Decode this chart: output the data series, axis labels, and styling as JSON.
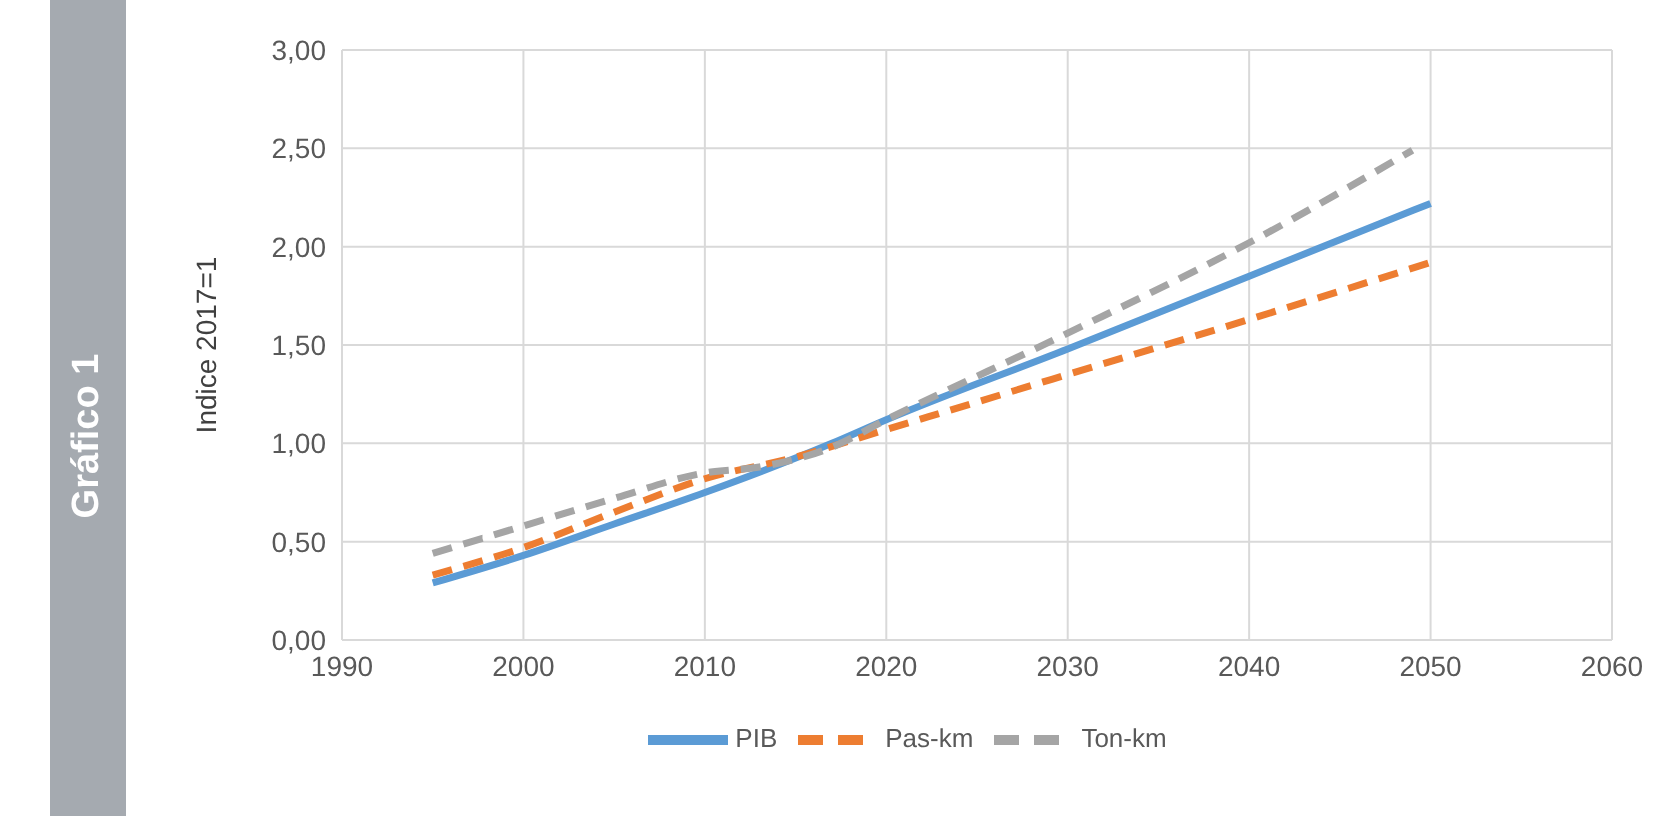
{
  "chart_data": {
    "type": "line",
    "title": "Gráfico 1",
    "ylabel": "Indice 2017=1",
    "xlim": [
      1990,
      2060
    ],
    "xticks": [
      1990,
      2000,
      2010,
      2020,
      2030,
      2040,
      2050,
      2060
    ],
    "ylim": [
      0,
      3
    ],
    "yticks": [
      {
        "value": 0,
        "label": "0,00"
      },
      {
        "value": 0.5,
        "label": "0,50"
      },
      {
        "value": 1,
        "label": "1,00"
      },
      {
        "value": 1.5,
        "label": "1,50"
      },
      {
        "value": 2,
        "label": "2,00"
      },
      {
        "value": 2.5,
        "label": "2,50"
      },
      {
        "value": 3,
        "label": "3,00"
      }
    ],
    "grid": true,
    "legend": "bottom",
    "marker": "none",
    "series": [
      {
        "name": "PIB",
        "color": "#5b9bd5",
        "line_style": "solid",
        "x": [
          1995,
          2000,
          2005,
          2010,
          2017,
          2020,
          2030,
          2040,
          2050
        ],
        "values": [
          0.29,
          0.43,
          0.59,
          0.75,
          1.0,
          1.12,
          1.48,
          1.85,
          2.22
        ]
      },
      {
        "name": "Pas-km",
        "color": "#ed7d31",
        "line_style": "dashed",
        "x": [
          1995,
          2000,
          2005,
          2010,
          2015,
          2020,
          2030,
          2040,
          2050
        ],
        "values": [
          0.33,
          0.47,
          0.65,
          0.82,
          0.93,
          1.07,
          1.35,
          1.63,
          1.92
        ]
      },
      {
        "name": "Ton-km",
        "color": "#a5a5a5",
        "line_style": "dashed",
        "x": [
          1995,
          2000,
          2005,
          2010,
          2013,
          2017,
          2020,
          2030,
          2040,
          2049
        ],
        "values": [
          0.44,
          0.58,
          0.72,
          0.85,
          0.88,
          0.98,
          1.12,
          1.56,
          2.02,
          2.49
        ]
      }
    ]
  }
}
